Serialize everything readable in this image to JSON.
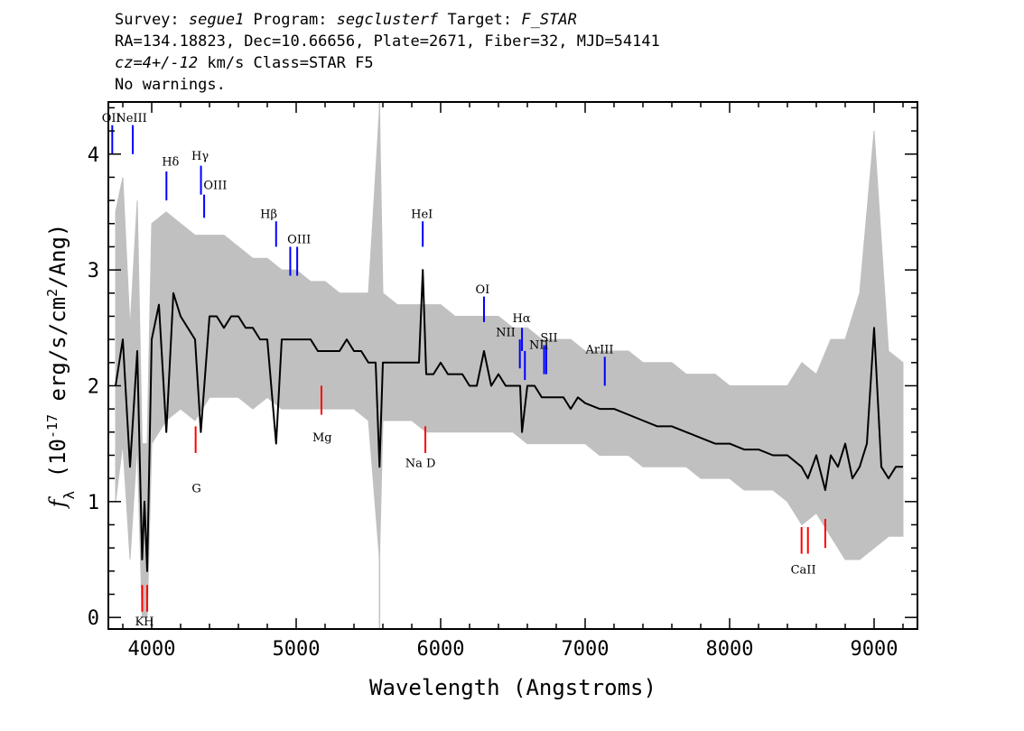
{
  "header": {
    "line1_a": "Survey: ",
    "survey": "segue1",
    "line1_b": " Program: ",
    "program": "segclusterf",
    "line1_c": " Target: ",
    "target": "F_STAR",
    "line2": "RA=134.18823, Dec=10.66656, Plate=2671, Fiber=32, MJD=54141",
    "line3_cz": "cz=4+/-12",
    "line3_rest": " km/s Class=STAR F5",
    "line4": "No warnings."
  },
  "colors": {
    "spectrum": "#000000",
    "error_band": "#c0c0c0",
    "emission_marker": "#0000ff",
    "absorption_marker": "#ff0000"
  },
  "chart_data": {
    "type": "line",
    "xlabel": "Wavelength (Angstroms)",
    "ylabel": "f_λ (10^-17 erg/s/cm^2/Ang)",
    "xlim": [
      3700,
      9300
    ],
    "ylim": [
      -0.1,
      4.45
    ],
    "x_ticks": [
      4000,
      5000,
      6000,
      7000,
      8000,
      9000
    ],
    "y_ticks": [
      0,
      1,
      2,
      3,
      4
    ],
    "grid": false,
    "sky_line_wavelength": 5577,
    "series": [
      {
        "role": "flux",
        "x": [
          3750,
          3800,
          3850,
          3900,
          3934,
          3950,
          3969,
          4000,
          4050,
          4101,
          4150,
          4200,
          4250,
          4300,
          4340,
          4400,
          4450,
          4500,
          4550,
          4600,
          4650,
          4700,
          4750,
          4800,
          4861,
          4900,
          4950,
          5000,
          5050,
          5100,
          5150,
          5200,
          5250,
          5300,
          5350,
          5400,
          5450,
          5500,
          5550,
          5577,
          5600,
          5650,
          5700,
          5750,
          5800,
          5850,
          5876,
          5900,
          5950,
          6000,
          6050,
          6100,
          6150,
          6200,
          6250,
          6300,
          6350,
          6400,
          6450,
          6500,
          6550,
          6563,
          6600,
          6650,
          6700,
          6750,
          6800,
          6850,
          6900,
          6950,
          7000,
          7100,
          7200,
          7300,
          7400,
          7500,
          7600,
          7700,
          7800,
          7900,
          8000,
          8100,
          8200,
          8300,
          8400,
          8498,
          8542,
          8600,
          8662,
          8700,
          8750,
          8800,
          8850,
          8900,
          8950,
          9000,
          9050,
          9100,
          9150,
          9200
        ],
        "y": [
          2.0,
          2.4,
          1.3,
          2.3,
          0.5,
          1.0,
          0.4,
          2.4,
          2.7,
          1.6,
          2.8,
          2.6,
          2.5,
          2.4,
          1.6,
          2.6,
          2.6,
          2.5,
          2.6,
          2.6,
          2.5,
          2.5,
          2.4,
          2.4,
          1.5,
          2.4,
          2.4,
          2.4,
          2.4,
          2.4,
          2.3,
          2.3,
          2.3,
          2.3,
          2.4,
          2.3,
          2.3,
          2.2,
          2.2,
          1.3,
          2.2,
          2.2,
          2.2,
          2.2,
          2.2,
          2.2,
          3.0,
          2.1,
          2.1,
          2.2,
          2.1,
          2.1,
          2.1,
          2.0,
          2.0,
          2.3,
          2.0,
          2.1,
          2.0,
          2.0,
          2.0,
          1.6,
          2.0,
          2.0,
          1.9,
          1.9,
          1.9,
          1.9,
          1.8,
          1.9,
          1.85,
          1.8,
          1.8,
          1.75,
          1.7,
          1.65,
          1.65,
          1.6,
          1.55,
          1.5,
          1.5,
          1.45,
          1.45,
          1.4,
          1.4,
          1.3,
          1.2,
          1.4,
          1.1,
          1.4,
          1.3,
          1.5,
          1.2,
          1.3,
          1.5,
          2.5,
          1.3,
          1.2,
          1.3,
          1.3
        ]
      },
      {
        "role": "error_band",
        "x": [
          3750,
          3800,
          3850,
          3900,
          3934,
          3969,
          4000,
          4100,
          4200,
          4300,
          4400,
          4500,
          4600,
          4700,
          4800,
          4900,
          5000,
          5100,
          5200,
          5300,
          5400,
          5500,
          5577,
          5600,
          5700,
          5800,
          5900,
          6000,
          6100,
          6200,
          6300,
          6400,
          6500,
          6600,
          6700,
          6800,
          6900,
          7000,
          7100,
          7200,
          7300,
          7400,
          7500,
          7600,
          7700,
          7800,
          7900,
          8000,
          8100,
          8200,
          8300,
          8400,
          8500,
          8600,
          8700,
          8800,
          8900,
          9000,
          9100,
          9200
        ],
        "y_low": [
          1.0,
          1.5,
          0.5,
          1.5,
          0.0,
          0.0,
          1.5,
          1.7,
          1.8,
          1.7,
          1.9,
          1.9,
          1.9,
          1.8,
          1.9,
          1.8,
          1.8,
          1.8,
          1.8,
          1.8,
          1.8,
          1.7,
          0.5,
          1.7,
          1.7,
          1.7,
          1.6,
          1.6,
          1.6,
          1.6,
          1.6,
          1.6,
          1.6,
          1.5,
          1.5,
          1.5,
          1.5,
          1.5,
          1.4,
          1.4,
          1.4,
          1.3,
          1.3,
          1.3,
          1.3,
          1.2,
          1.2,
          1.2,
          1.1,
          1.1,
          1.1,
          1.0,
          0.8,
          0.9,
          0.7,
          0.5,
          0.5,
          0.6,
          0.7,
          0.7
        ],
        "y_high": [
          3.5,
          3.8,
          2.5,
          3.6,
          1.5,
          1.5,
          3.4,
          3.5,
          3.4,
          3.3,
          3.3,
          3.3,
          3.2,
          3.1,
          3.1,
          3.0,
          3.0,
          2.9,
          2.9,
          2.8,
          2.8,
          2.8,
          4.4,
          2.8,
          2.7,
          2.7,
          2.7,
          2.7,
          2.6,
          2.6,
          2.6,
          2.6,
          2.5,
          2.5,
          2.4,
          2.4,
          2.4,
          2.3,
          2.3,
          2.3,
          2.3,
          2.2,
          2.2,
          2.2,
          2.1,
          2.1,
          2.1,
          2.0,
          2.0,
          2.0,
          2.0,
          2.0,
          2.2,
          2.1,
          2.4,
          2.4,
          2.8,
          4.2,
          2.3,
          2.2
        ]
      }
    ],
    "emission_lines": [
      {
        "label": "OII",
        "wavelength": 3727,
        "y_low": 4.0,
        "y_high": 4.25
      },
      {
        "label": "NeIII",
        "wavelength": 3869,
        "y_low": 4.0,
        "y_high": 4.25
      },
      {
        "label": "Hδ",
        "wavelength": 4102,
        "y_low": 3.6,
        "y_high": 3.85
      },
      {
        "label": "Hγ",
        "wavelength": 4341,
        "y_low": 3.65,
        "y_high": 3.9
      },
      {
        "label": "OIII",
        "wavelength": 4363,
        "y_low": 3.45,
        "y_high": 3.65
      },
      {
        "label": "Hβ",
        "wavelength": 4861,
        "y_low": 3.2,
        "y_high": 3.42
      },
      {
        "label": "OIII",
        "wavelength": 4959,
        "y_low": 2.95,
        "y_high": 3.2
      },
      {
        "label": "OIII",
        "wavelength": 5007,
        "y_low": 2.95,
        "y_high": 3.2
      },
      {
        "label": "HeI",
        "wavelength": 5876,
        "y_low": 3.2,
        "y_high": 3.42
      },
      {
        "label": "OI",
        "wavelength": 6300,
        "y_low": 2.55,
        "y_high": 2.77
      },
      {
        "label": "NII",
        "wavelength": 6548,
        "y_low": 2.15,
        "y_high": 2.4
      },
      {
        "label": "Hα",
        "wavelength": 6563,
        "y_low": 2.3,
        "y_high": 2.5
      },
      {
        "label": "NII",
        "wavelength": 6583,
        "y_low": 2.05,
        "y_high": 2.3
      },
      {
        "label": "SII",
        "wavelength": 6716,
        "y_low": 2.1,
        "y_high": 2.35
      },
      {
        "label": "SII",
        "wavelength": 6731,
        "y_low": 2.1,
        "y_high": 2.35
      },
      {
        "label": "ArIII",
        "wavelength": 7136,
        "y_low": 2.0,
        "y_high": 2.25
      }
    ],
    "absorption_lines": [
      {
        "label": "K",
        "wavelength": 3934,
        "y_low": 0.05,
        "y_high": 0.28
      },
      {
        "label": "H",
        "wavelength": 3969,
        "y_low": 0.05,
        "y_high": 0.28
      },
      {
        "label": "G",
        "wavelength": 4304,
        "y_low": 1.42,
        "y_high": 1.65
      },
      {
        "label": "Mg",
        "wavelength": 5175,
        "y_low": 1.75,
        "y_high": 2.0
      },
      {
        "label": "Na D",
        "wavelength": 5894,
        "y_low": 1.42,
        "y_high": 1.65
      },
      {
        "label": "CaII",
        "wavelength": 8498,
        "y_low": 0.55,
        "y_high": 0.78
      },
      {
        "label": "CaII",
        "wavelength": 8542,
        "y_low": 0.55,
        "y_high": 0.78
      },
      {
        "label": "CaII",
        "wavelength": 8662,
        "y_low": 0.6,
        "y_high": 0.85
      }
    ],
    "line_texts": {
      "OII_partial": "OII",
      "NeIII": "NeIII",
      "Hdelta": "Hδ",
      "Hgamma": "Hγ",
      "OIII_1": "OIII",
      "Hbeta": "Hβ",
      "OIII_2": "OIII",
      "HeI": "HeI",
      "OI": "OI",
      "NII_1": "NII",
      "Halpha": "Hα",
      "NII_2": "NII",
      "SII": "SII",
      "ArIII": "ArIII",
      "KH": "KH",
      "G": "G",
      "Mg": "Mg",
      "NaD": "Na D",
      "CaII": "CaII"
    }
  }
}
